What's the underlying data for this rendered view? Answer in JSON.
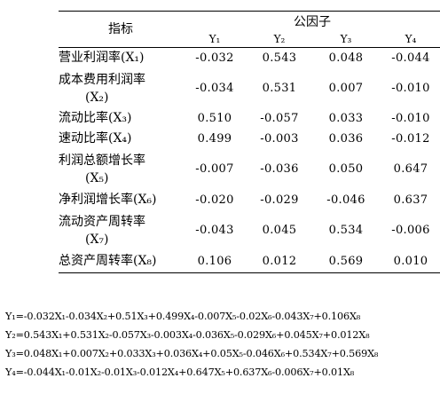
{
  "table": {
    "indicator_header": "指标",
    "factor_group_header": "公因子",
    "factor_columns": [
      "Y₁",
      "Y₂",
      "Y₃",
      "Y₄"
    ],
    "rows": [
      {
        "indicator": "营业利润率(X₁)",
        "values": [
          "-0.032",
          "0.543",
          "0.048",
          "-0.044"
        ]
      },
      {
        "indicator_line1": "成本费用利润率",
        "indicator_line2": "(X₂)",
        "values": [
          "-0.034",
          "0.531",
          "0.007",
          "-0.010"
        ]
      },
      {
        "indicator": "流动比率(X₃)",
        "values": [
          "0.510",
          "-0.057",
          "0.033",
          "-0.010"
        ]
      },
      {
        "indicator": "速动比率(X₄)",
        "values": [
          "0.499",
          "-0.003",
          "0.036",
          "-0.012"
        ]
      },
      {
        "indicator_line1": "利润总额增长率",
        "indicator_line2": "(X₅)",
        "values": [
          "-0.007",
          "-0.036",
          "0.050",
          "0.647"
        ]
      },
      {
        "indicator": "净利润增长率(X₆)",
        "values": [
          "-0.020",
          "-0.029",
          "-0.046",
          "0.637"
        ]
      },
      {
        "indicator_line1": "流动资产周转率",
        "indicator_line2": "(X₇)",
        "values": [
          "-0.043",
          "0.045",
          "0.534",
          "-0.006"
        ]
      },
      {
        "indicator": "总资产周转率(X₈)",
        "values": [
          "0.106",
          "0.012",
          "0.569",
          "0.010"
        ]
      }
    ]
  },
  "equations": [
    "Y₁=-0.032X₁-0.034X₂+0.51X₃+0.499X₄-0.007X₅-0.02X₆-0.043X₇+0.106X₈",
    "Y₂=0.543X₁+0.531X₂-0.057X₃-0.003X₄-0.036X₅-0.029X₆+0.045X₇+0.012X₈",
    "Y₃=0.048X₁+0.007X₂+0.033X₃+0.036X₄+0.05X₅-0.046X₆+0.534X₇+0.569X₈",
    "Y₄=-0.044X₁-0.01X₂-0.01X₃-0.012X₄+0.647X₅+0.637X₆-0.006X₇+0.01X₈"
  ]
}
